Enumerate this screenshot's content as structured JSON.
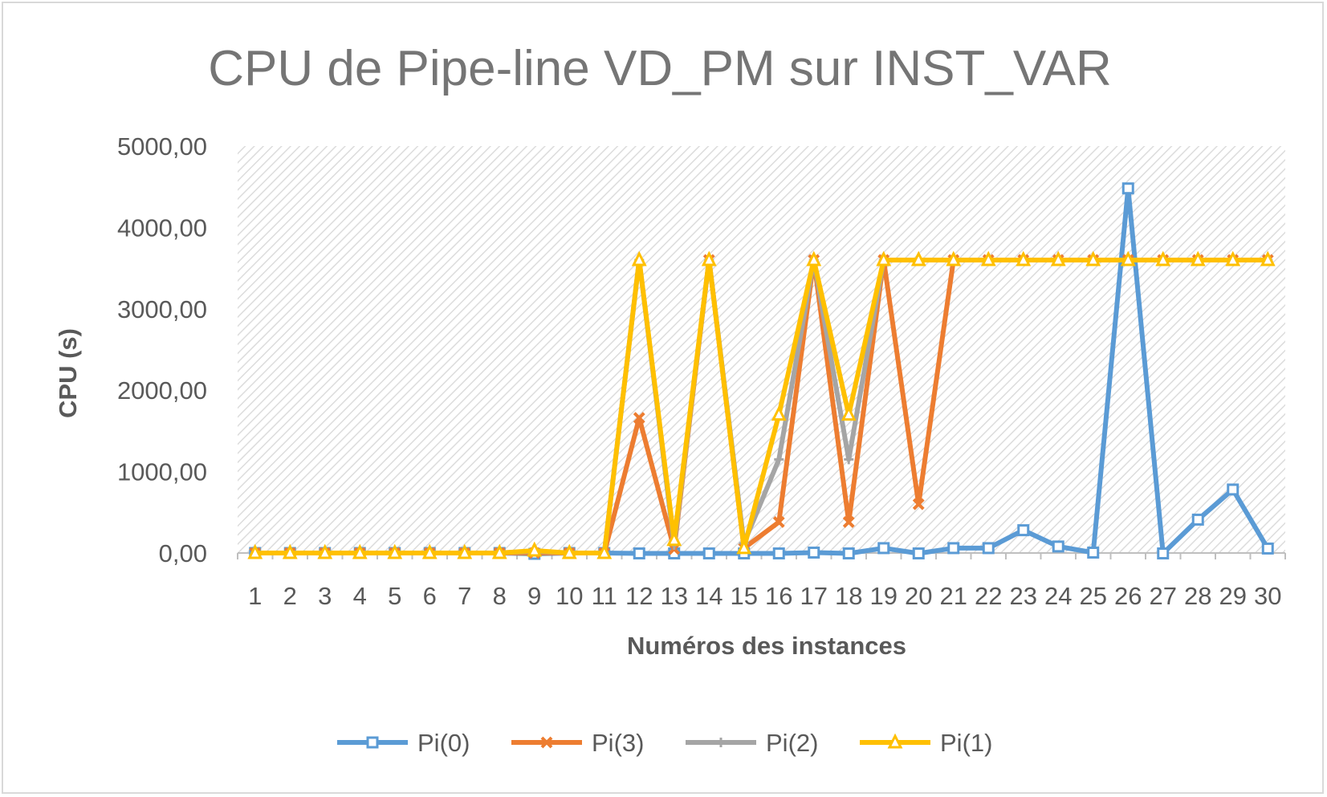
{
  "chart_data": {
    "type": "line",
    "title": "CPU de Pipe-line VD_PM sur INST_VAR",
    "xlabel": "Numéros des instances",
    "ylabel": "CPU (s)",
    "ylim": [
      0,
      5000
    ],
    "yticks": [
      {
        "value": 0,
        "label": "0,00"
      },
      {
        "value": 1000,
        "label": "1000,00"
      },
      {
        "value": 2000,
        "label": "2000,00"
      },
      {
        "value": 3000,
        "label": "3000,00"
      },
      {
        "value": 4000,
        "label": "4000,00"
      },
      {
        "value": 5000,
        "label": "5000,00"
      }
    ],
    "categories": [
      "1",
      "2",
      "3",
      "4",
      "5",
      "6",
      "7",
      "8",
      "9",
      "10",
      "11",
      "12",
      "13",
      "14",
      "15",
      "16",
      "17",
      "18",
      "19",
      "20",
      "21",
      "22",
      "23",
      "24",
      "25",
      "26",
      "27",
      "28",
      "29",
      "30"
    ],
    "grid": false,
    "plot_background": "diagonal-hatch",
    "legend_position": "bottom",
    "series": [
      {
        "name": "Pi(0)",
        "color": "#5b9bd5",
        "marker": "square",
        "values": [
          0,
          0,
          0,
          0,
          0,
          0,
          0,
          0,
          -10,
          0,
          0,
          -5,
          -5,
          -5,
          -5,
          -5,
          5,
          -5,
          60,
          -5,
          60,
          60,
          280,
          80,
          5,
          4480,
          -5,
          410,
          780,
          55
        ]
      },
      {
        "name": "Pi(3)",
        "color": "#ed7d31",
        "marker": "x",
        "values": [
          0,
          0,
          0,
          0,
          0,
          0,
          0,
          0,
          0,
          0,
          0,
          1660,
          50,
          3600,
          60,
          380,
          3600,
          380,
          3600,
          600,
          3600,
          3600,
          3600,
          3600,
          3600,
          3600,
          3600,
          3600,
          3600,
          3600
        ]
      },
      {
        "name": "Pi(2)",
        "color": "#a5a5a5",
        "marker": "plus",
        "values": [
          0,
          0,
          0,
          0,
          0,
          0,
          0,
          0,
          20,
          0,
          0,
          3600,
          100,
          3600,
          120,
          1150,
          3600,
          1150,
          3600,
          3600,
          3600,
          3600,
          3600,
          3600,
          3600,
          3600,
          3600,
          3600,
          3600,
          3600
        ]
      },
      {
        "name": "Pi(1)",
        "color": "#ffc000",
        "marker": "triangle",
        "values": [
          0,
          0,
          0,
          0,
          0,
          0,
          0,
          0,
          30,
          0,
          0,
          3600,
          160,
          3600,
          60,
          1700,
          3600,
          1700,
          3600,
          3600,
          3600,
          3600,
          3600,
          3600,
          3600,
          3600,
          3600,
          3600,
          3600,
          3600
        ]
      }
    ]
  }
}
